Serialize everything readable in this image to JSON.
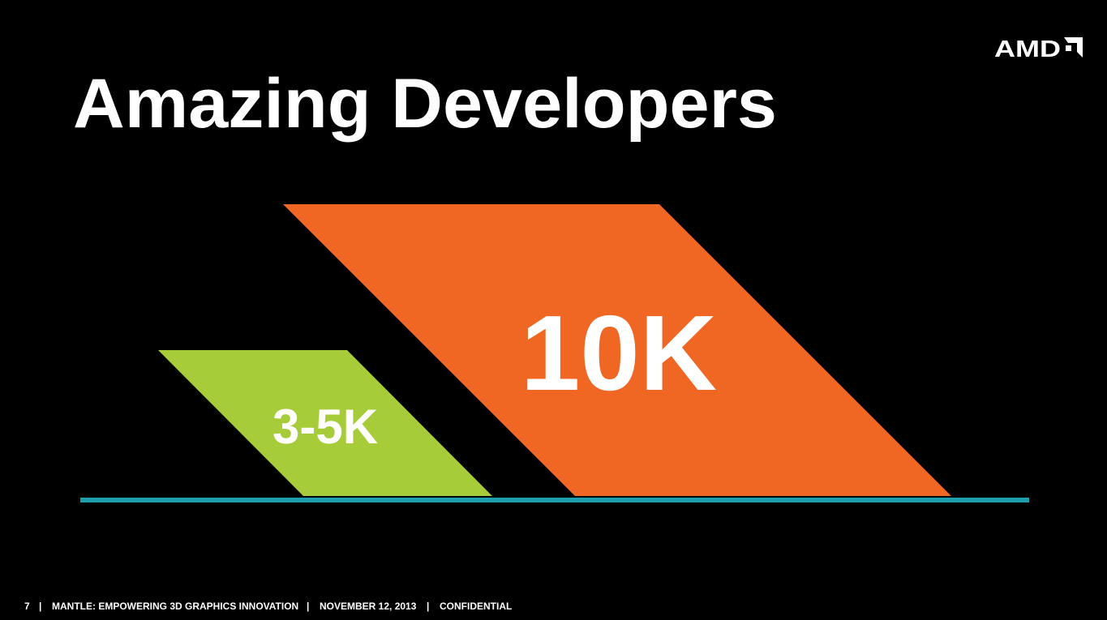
{
  "logo": "AMD",
  "title": "Amazing Developers",
  "shapes": [
    {
      "label": "3-5K"
    },
    {
      "label": "10K"
    }
  ],
  "footer": {
    "page": "7",
    "separator": "|",
    "items": [
      "MANTLE: EMPOWERING 3D GRAPHICS INNOVATION",
      "NOVEMBER 12, 2013",
      "CONFIDENTIAL"
    ]
  }
}
